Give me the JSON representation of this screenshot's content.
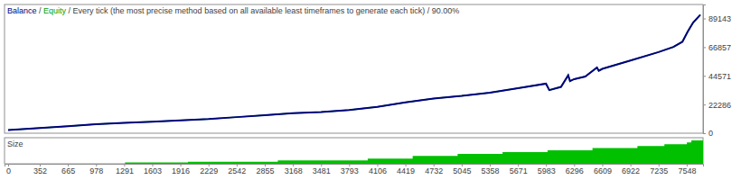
{
  "chart_data": [
    {
      "type": "line",
      "title": "Every tick (the most precise method based on all available least timeframes to generate each tick) / 90.00%",
      "legend_separator": " / ",
      "legend": "top-left",
      "x": [
        0,
        352,
        665,
        978,
        1291,
        1603,
        1916,
        2229,
        2542,
        2855,
        3168,
        3481,
        3793,
        4106,
        4419,
        4732,
        5045,
        5358,
        5671,
        5983,
        6020,
        6150,
        6230,
        6250,
        6296,
        6420,
        6550,
        6570,
        6609,
        6922,
        7235,
        7400,
        7500,
        7560,
        7620,
        7700
      ],
      "series": [
        {
          "name": "Balance",
          "color": "#000080",
          "values": [
            2500,
            4000,
            5500,
            7000,
            8000,
            9000,
            10000,
            11000,
            12500,
            14000,
            15500,
            16500,
            18000,
            20500,
            24000,
            27000,
            29000,
            31500,
            35000,
            38500,
            33500,
            36000,
            45000,
            40500,
            42000,
            44000,
            51000,
            48500,
            50000,
            56500,
            63000,
            67000,
            71000,
            79000,
            86000,
            92000
          ]
        },
        {
          "name": "Equity",
          "color": "#00a000",
          "values": [
            2500,
            4000,
            5500,
            7000,
            8000,
            9000,
            10000,
            11000,
            12500,
            14000,
            15500,
            16500,
            18000,
            20500,
            24000,
            27000,
            29000,
            31500,
            35000,
            38500,
            33500,
            36000,
            45000,
            40500,
            42000,
            44000,
            51000,
            48500,
            50000,
            56500,
            63000,
            67000,
            71000,
            79000,
            86000,
            92000
          ]
        }
      ],
      "xlim": [
        -40,
        7730
      ],
      "ylim": [
        0,
        100000
      ],
      "yticks": [
        0,
        22286,
        44571,
        66857,
        89143
      ],
      "tick_labels": "y",
      "grid": false
    },
    {
      "type": "area",
      "title": "Size",
      "x": [
        1200,
        1300,
        2000,
        3000,
        4000,
        4500,
        5000,
        5500,
        6000,
        6500,
        7000,
        7300,
        7550,
        7600,
        7730
      ],
      "values": [
        0,
        0.05,
        0.08,
        0.13,
        0.2,
        0.3,
        0.38,
        0.45,
        0.52,
        0.6,
        0.68,
        0.75,
        0.82,
        0.9,
        1.0
      ],
      "color": "#00c000",
      "xlim": [
        -40,
        7730
      ],
      "xticks": [
        0,
        352,
        665,
        978,
        1291,
        1603,
        1916,
        2229,
        2542,
        2855,
        3168,
        3481,
        3793,
        4106,
        4419,
        4732,
        5045,
        5358,
        5671,
        5983,
        6296,
        6609,
        6922,
        7235,
        7548
      ],
      "ylim": [
        0,
        1
      ],
      "tick_labels": "x",
      "grid": false
    }
  ]
}
